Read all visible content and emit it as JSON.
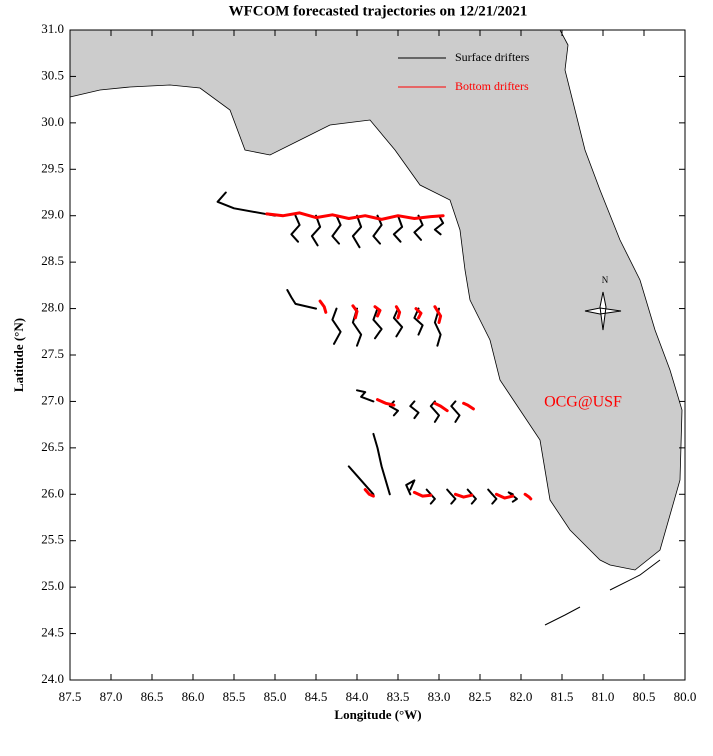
{
  "chart_data": {
    "type": "line",
    "title": "WFCOM forecasted trajectories on 12/21/2021",
    "x_label": "Longitude (°W)",
    "y_label": "Latitude (°N)",
    "annotation": "OCG@USF",
    "compass_label": "N",
    "legend": "upper right",
    "xlim": [
      87.5,
      80.0
    ],
    "ylim": [
      24.0,
      31.0
    ],
    "xticks": [
      87.5,
      {
        "value": 87,
        "label": "87.0"
      },
      86.5,
      {
        "value": 86,
        "label": "86.0"
      },
      85.5,
      {
        "value": 85,
        "label": "85.0"
      },
      84.5,
      {
        "value": 84,
        "label": "84.0"
      },
      83.5,
      {
        "value": 83,
        "label": "83.0"
      },
      82.5,
      {
        "value": 82,
        "label": "82.0"
      },
      81.5,
      {
        "value": 81,
        "label": "81.0"
      },
      80.5,
      {
        "value": 80,
        "label": "80.0"
      }
    ],
    "yticks": [
      {
        "value": 24,
        "label": "24.0"
      },
      24.5,
      {
        "value": 25,
        "label": "25.0"
      },
      25.5,
      {
        "value": 26,
        "label": "26.0"
      },
      26.5,
      {
        "value": 27,
        "label": "27.0"
      },
      27.5,
      {
        "value": 28,
        "label": "28.0"
      },
      28.5,
      {
        "value": 29,
        "label": "29.0"
      },
      29.5,
      {
        "value": 30,
        "label": "30.0"
      },
      30.5,
      {
        "value": 31,
        "label": "31.0"
      }
    ],
    "series": [
      {
        "name": "Surface drifters",
        "color": "#000000",
        "x": [
          85.0,
          85.5,
          85.7,
          85.6,
          null,
          84.75,
          84.7,
          84.8,
          84.72,
          null,
          84.5,
          84.45,
          84.55,
          84.48,
          null,
          84.25,
          84.2,
          84.3,
          84.22,
          null,
          84.0,
          83.95,
          84.05,
          83.97,
          null,
          83.75,
          83.7,
          83.8,
          83.72,
          null,
          83.5,
          83.45,
          83.55,
          83.47,
          null,
          83.25,
          83.2,
          83.3,
          83.22,
          null,
          83.0,
          82.95,
          83.05,
          82.98,
          null,
          84.5,
          84.75,
          84.8,
          84.85,
          null,
          84.25,
          84.3,
          84.2,
          84.28,
          null,
          84.0,
          84.05,
          83.95,
          84.0,
          null,
          83.75,
          83.8,
          83.7,
          83.78,
          null,
          83.5,
          83.55,
          83.45,
          83.52,
          null,
          83.25,
          83.3,
          83.2,
          83.25,
          null,
          83.0,
          83.05,
          82.98,
          83.02,
          null,
          83.8,
          83.95,
          83.9,
          84.0,
          null,
          83.55,
          83.6,
          83.5,
          83.55,
          null,
          83.3,
          83.35,
          83.25,
          83.3,
          null,
          83.05,
          83.1,
          83.0,
          83.05,
          null,
          82.8,
          82.85,
          82.75,
          82.8,
          null,
          83.8,
          84.0,
          84.1,
          84.05,
          null,
          83.6,
          83.7,
          83.75,
          83.8,
          null,
          83.35,
          83.4,
          83.3,
          83.35,
          null,
          83.1,
          83.15,
          83.05,
          83.1,
          null,
          82.85,
          82.9,
          82.8,
          82.85,
          null,
          82.6,
          82.65,
          82.55,
          82.6,
          null,
          82.35,
          82.4,
          82.3,
          82.35,
          null,
          82.1,
          82.15,
          82.05,
          82.1
        ],
        "y": [
          29.0,
          29.08,
          29.15,
          29.25,
          null,
          29.0,
          28.9,
          28.8,
          28.72,
          null,
          29.0,
          28.88,
          28.78,
          28.68,
          null,
          29.0,
          28.9,
          28.78,
          28.7,
          null,
          29.0,
          28.88,
          28.78,
          28.66,
          null,
          29.0,
          28.9,
          28.78,
          28.7,
          null,
          29.0,
          28.88,
          28.8,
          28.72,
          null,
          29.0,
          28.9,
          28.82,
          28.74,
          null,
          29.0,
          28.92,
          28.85,
          28.8,
          null,
          28.0,
          28.05,
          28.12,
          28.2,
          null,
          28.0,
          27.88,
          27.75,
          27.62,
          null,
          28.0,
          27.85,
          27.72,
          27.6,
          null,
          28.0,
          27.88,
          27.78,
          27.68,
          null,
          28.0,
          27.9,
          27.8,
          27.7,
          null,
          28.0,
          27.9,
          27.82,
          27.72,
          null,
          28.0,
          27.85,
          27.72,
          27.6,
          null,
          27.0,
          27.05,
          27.1,
          27.12,
          null,
          27.0,
          26.95,
          26.9,
          26.85,
          null,
          27.0,
          26.95,
          26.88,
          26.82,
          null,
          27.0,
          26.95,
          26.85,
          26.78,
          null,
          27.0,
          26.95,
          26.85,
          26.78,
          null,
          26.0,
          26.2,
          26.3,
          26.25,
          null,
          26.0,
          26.3,
          26.5,
          26.65,
          null,
          26.0,
          26.1,
          26.15,
          26.05,
          null,
          26.0,
          26.05,
          25.95,
          25.9,
          null,
          26.0,
          26.05,
          25.95,
          25.9,
          null,
          26.0,
          26.05,
          25.95,
          25.9,
          null,
          26.0,
          26.05,
          25.95,
          25.9,
          null,
          26.0,
          26.02,
          25.95,
          25.92
        ]
      },
      {
        "name": "Bottom drifters",
        "color": "#ff0000",
        "x": [
          85.1,
          84.9,
          84.7,
          84.5,
          84.3,
          84.1,
          83.9,
          83.7,
          83.5,
          83.3,
          83.1,
          82.95,
          null,
          84.45,
          84.4,
          84.38,
          null,
          84.05,
          84.0,
          84.02,
          null,
          83.78,
          83.72,
          83.75,
          null,
          83.52,
          83.48,
          83.5,
          null,
          83.28,
          83.22,
          83.25,
          null,
          83.05,
          82.98,
          83.0,
          null,
          83.75,
          83.65,
          83.55,
          null,
          83.05,
          82.98,
          82.9,
          null,
          82.7,
          82.65,
          82.58,
          null,
          83.9,
          83.85,
          83.8,
          null,
          83.3,
          83.2,
          83.1,
          null,
          82.8,
          82.7,
          82.6,
          null,
          82.3,
          82.2,
          82.1,
          null,
          81.95,
          81.9,
          81.88
        ],
        "y": [
          29.02,
          29.0,
          29.03,
          28.98,
          29.01,
          28.97,
          29.0,
          28.96,
          29.0,
          28.97,
          28.99,
          29.0,
          null,
          28.08,
          28.02,
          27.96,
          null,
          28.03,
          27.97,
          27.9,
          null,
          28.02,
          27.98,
          27.92,
          null,
          28.02,
          27.96,
          27.9,
          null,
          28.0,
          27.95,
          27.9,
          null,
          28.02,
          27.92,
          27.85,
          null,
          27.02,
          26.98,
          26.96,
          null,
          26.98,
          26.95,
          26.9,
          null,
          26.98,
          26.96,
          26.92,
          null,
          26.05,
          26.0,
          25.98,
          null,
          26.02,
          25.98,
          25.99,
          null,
          26.0,
          25.97,
          25.99,
          null,
          26.0,
          25.96,
          25.98,
          null,
          26.0,
          25.97,
          25.95
        ]
      }
    ]
  }
}
